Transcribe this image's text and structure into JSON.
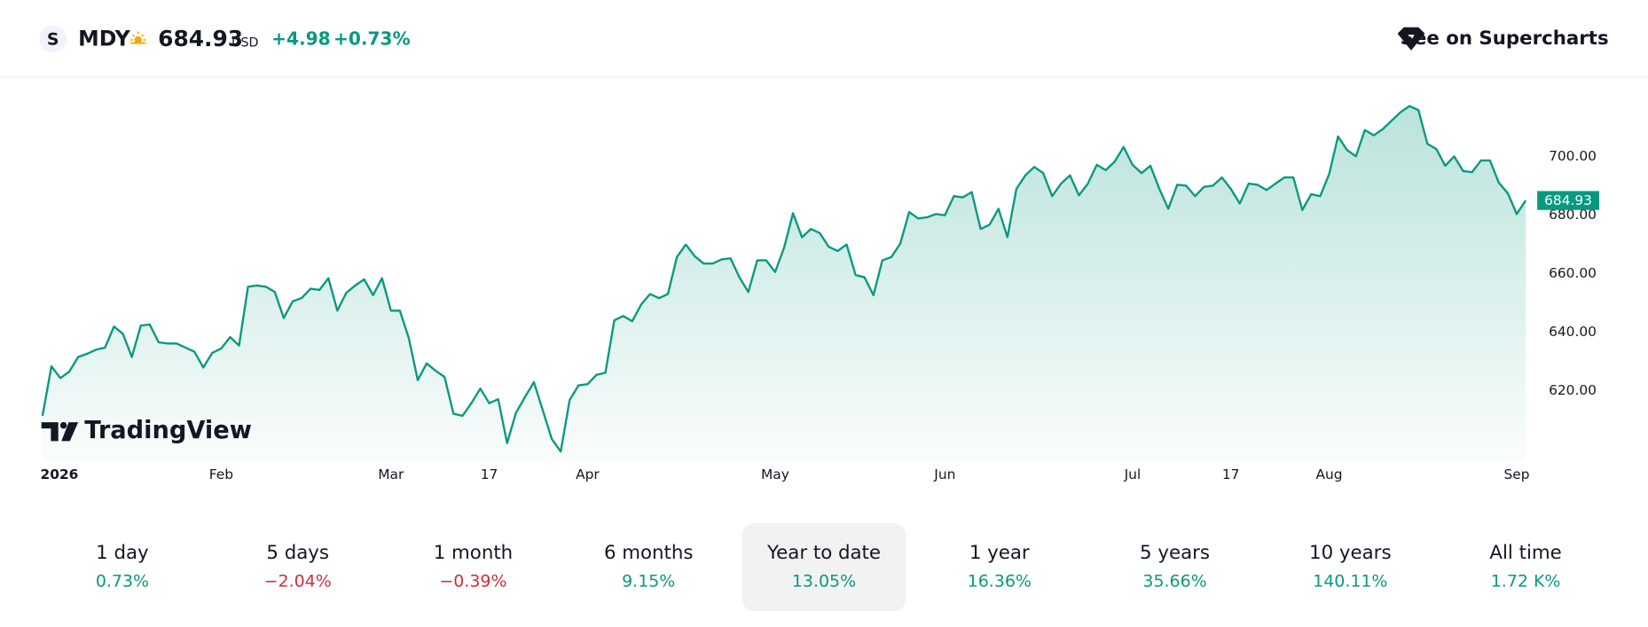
{
  "header": {
    "logo": "S",
    "symbol": "MDY",
    "price": "684.93",
    "currency": "USD",
    "change": "+4.98",
    "change_percent": "+0.73%",
    "link": "See on Supercharts"
  },
  "watermark": "TradingView",
  "chart_data": {
    "type": "area",
    "color": "#089981",
    "values": [
      611.4,
      628.3,
      624.3,
      626.5,
      631.5,
      632.6,
      634.0,
      634.7,
      641.9,
      639.4,
      631.5,
      642.2,
      642.6,
      636.5,
      636.1,
      636.1,
      634.7,
      633.3,
      627.9,
      632.9,
      634.4,
      638.3,
      635.4,
      655.5,
      655.9,
      655.5,
      653.7,
      644.8,
      650.5,
      651.6,
      654.8,
      654.4,
      658.4,
      647.3,
      653.4,
      655.9,
      658.0,
      652.6,
      658.4,
      647.3,
      647.3,
      637.9,
      623.6,
      629.3,
      626.8,
      624.7,
      612.1,
      611.4,
      615.7,
      620.7,
      615.7,
      617.1,
      602.1,
      612.5,
      617.8,
      622.9,
      613.2,
      603.5,
      599.2,
      616.8,
      621.8,
      622.2,
      625.4,
      626.1,
      644.0,
      645.5,
      643.7,
      649.4,
      653.0,
      651.6,
      653.0,
      665.6,
      669.9,
      665.9,
      663.4,
      663.4,
      664.8,
      665.2,
      658.7,
      653.7,
      664.5,
      664.5,
      660.5,
      668.8,
      680.6,
      672.4,
      675.2,
      673.8,
      669.1,
      667.7,
      669.9,
      659.5,
      658.7,
      652.6,
      664.5,
      665.6,
      670.2,
      681.0,
      678.8,
      679.2,
      680.3,
      679.9,
      686.4,
      686.0,
      687.8,
      675.2,
      676.7,
      682.1,
      672.4,
      688.9,
      693.5,
      696.4,
      694.3,
      686.4,
      690.7,
      693.5,
      686.7,
      690.7,
      697.1,
      695.3,
      698.2,
      703.2,
      697.1,
      694.3,
      696.8,
      688.9,
      682.1,
      690.3,
      690.0,
      686.4,
      689.6,
      690.0,
      692.8,
      688.9,
      683.9,
      690.7,
      690.3,
      688.5,
      690.7,
      692.8,
      692.8,
      681.7,
      687.1,
      686.4,
      693.9,
      706.8,
      702.2,
      700.0,
      709.0,
      707.2,
      709.3,
      712.2,
      715.1,
      717.2,
      715.8,
      704.3,
      702.5,
      696.8,
      700.0,
      695.0,
      694.6,
      698.6,
      698.6,
      691.0,
      687.4,
      680.3,
      684.93
    ],
    "xlim": [
      0,
      166
    ],
    "xticks": [
      {
        "value": 0,
        "label": "2026"
      },
      {
        "value": 20,
        "label": "Feb"
      },
      {
        "value": 39,
        "label": "Mar"
      },
      {
        "value": 50,
        "label": "17"
      },
      {
        "value": 61,
        "label": "Apr"
      },
      {
        "value": 82,
        "label": "May"
      },
      {
        "value": 101,
        "label": "Jun"
      },
      {
        "value": 122,
        "label": "Jul"
      },
      {
        "value": 133,
        "label": "17"
      },
      {
        "value": 144,
        "label": "Aug"
      },
      {
        "value": 165,
        "label": "Sep"
      }
    ],
    "ylim": [
      595.6,
      726.5
    ],
    "yticks": [
      {
        "value": 620,
        "label": "620.00"
      },
      {
        "value": 640,
        "label": "640.00"
      },
      {
        "value": 660,
        "label": "660.00"
      },
      {
        "value": 680,
        "label": "680.00"
      },
      {
        "value": 700,
        "label": "700.00"
      }
    ],
    "grid": false
  },
  "periods": [
    {
      "name": "1 day",
      "change": "0.73%",
      "direction": "up"
    },
    {
      "name": "5 days",
      "change": "−2.04%",
      "direction": "down"
    },
    {
      "name": "1 month",
      "change": "−0.39%",
      "direction": "down"
    },
    {
      "name": "6 months",
      "change": "9.15%",
      "direction": "up"
    },
    {
      "name": "Year to date",
      "change": "13.05%",
      "direction": "up",
      "selected": true
    },
    {
      "name": "1 year",
      "change": "16.36%",
      "direction": "up"
    },
    {
      "name": "5 years",
      "change": "35.66%",
      "direction": "up"
    },
    {
      "name": "10 years",
      "change": "140.11%",
      "direction": "up"
    },
    {
      "name": "All time",
      "change": "1.72 K%",
      "direction": "up"
    }
  ]
}
